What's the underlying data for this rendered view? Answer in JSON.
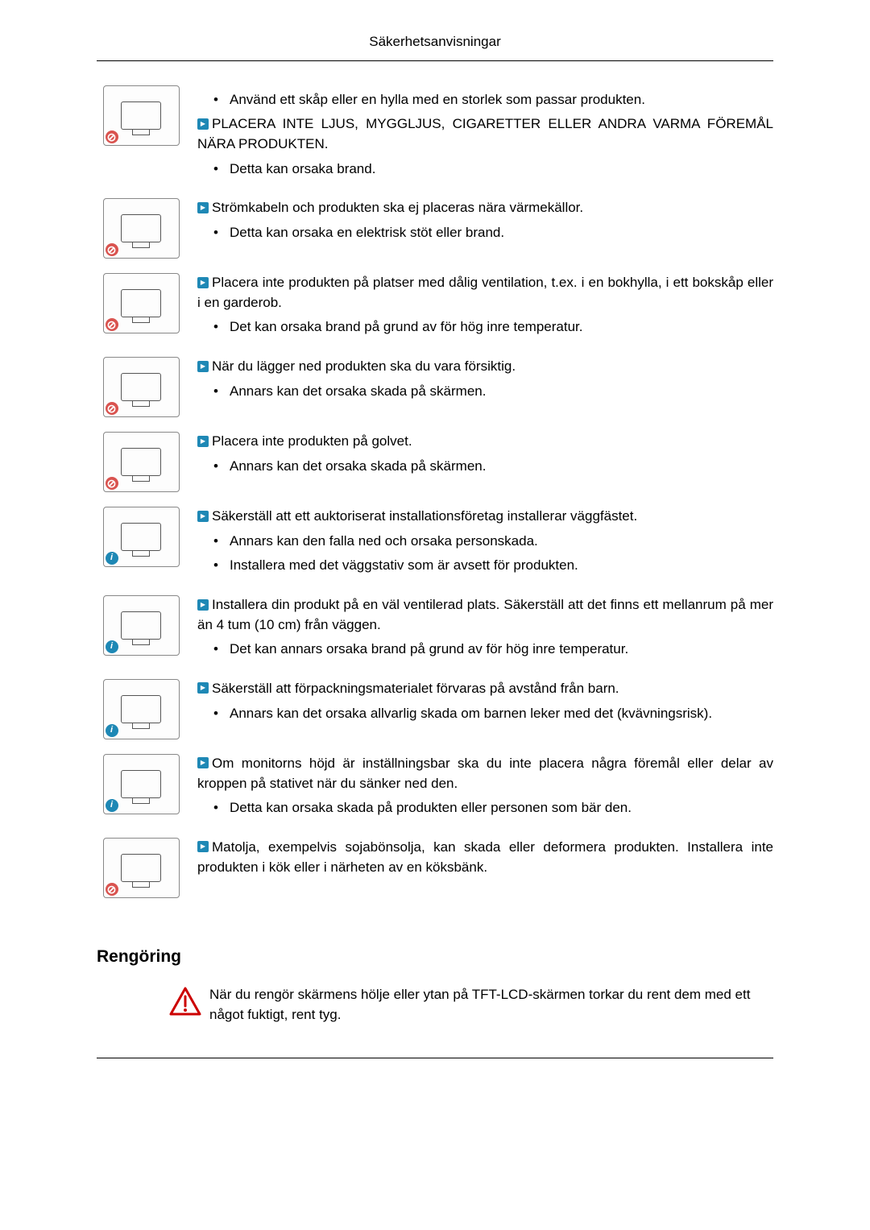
{
  "header": "Säkerhetsanvisningar",
  "sections": [
    {
      "icon_badge": "prohibit",
      "pre_bullets": [
        "Använd ett skåp eller en hylla med en storlek som passar produkten."
      ],
      "warn": "PLACERA INTE LJUS, MYGGLJUS, CIGARETTER ELLER ANDRA VARMA FÖREMÅL NÄRA PRODUKTEN.",
      "bullets": [
        "Detta kan orsaka brand."
      ]
    },
    {
      "icon_badge": "prohibit",
      "warn": "Strömkabeln och produkten ska ej placeras nära värmekällor.",
      "bullets": [
        "Detta kan orsaka en elektrisk stöt eller brand."
      ]
    },
    {
      "icon_badge": "prohibit",
      "warn": "Placera inte produkten på platser med dålig ventilation, t.ex. i en bokhylla, i ett bokskåp eller i en garderob.",
      "bullets": [
        "Det kan orsaka brand på grund av för hög inre temperatur."
      ]
    },
    {
      "icon_badge": "prohibit",
      "warn": "När du lägger ned produkten ska du vara försiktig.",
      "bullets": [
        "Annars kan det orsaka skada på skärmen."
      ]
    },
    {
      "icon_badge": "prohibit",
      "warn": "Placera inte produkten på golvet.",
      "bullets": [
        "Annars kan det orsaka skada på skärmen."
      ]
    },
    {
      "icon_badge": "info",
      "warn": "Säkerställ att ett auktoriserat installationsföretag installerar väggfästet.",
      "bullets": [
        "Annars kan den falla ned och orsaka personskada.",
        "Installera med det väggstativ som är avsett för produkten."
      ]
    },
    {
      "icon_badge": "info",
      "warn": "Installera din produkt på en väl ventilerad plats. Säkerställ att det finns ett mellanrum på mer än 4 tum (10 cm) från väggen.",
      "bullets": [
        "Det kan annars orsaka brand på grund av för hög inre temperatur."
      ]
    },
    {
      "icon_badge": "info",
      "warn": "Säkerställ att förpackningsmaterialet förvaras på avstånd från barn.",
      "bullets": [
        "Annars kan det orsaka allvarlig skada om barnen leker med det (kvävningsrisk)."
      ]
    },
    {
      "icon_badge": "info",
      "warn": "Om monitorns höjd är inställningsbar ska du inte placera några föremål eller delar av kroppen på stativet när du sänker ned den.",
      "bullets": [
        "Detta kan orsaka skada på produkten eller personen som bär den."
      ]
    },
    {
      "icon_badge": "prohibit",
      "warn": "Matolja, exempelvis sojabönsolja, kan skada eller deformera produkten. Installera inte produkten i kök eller i närheten av en köksbänk.",
      "bullets": []
    }
  ],
  "cleaning": {
    "title": "Rengöring",
    "text": "När du rengör skärmens hölje eller ytan på TFT-LCD-skärmen torkar du rent dem med ett något fuktigt, rent tyg."
  },
  "colors": {
    "text": "#000000",
    "warn_icon_bg": "#1e88b5",
    "prohibit_badge": "#d9534f",
    "info_badge": "#1e88b5",
    "triangle_stroke": "#cc0000"
  }
}
